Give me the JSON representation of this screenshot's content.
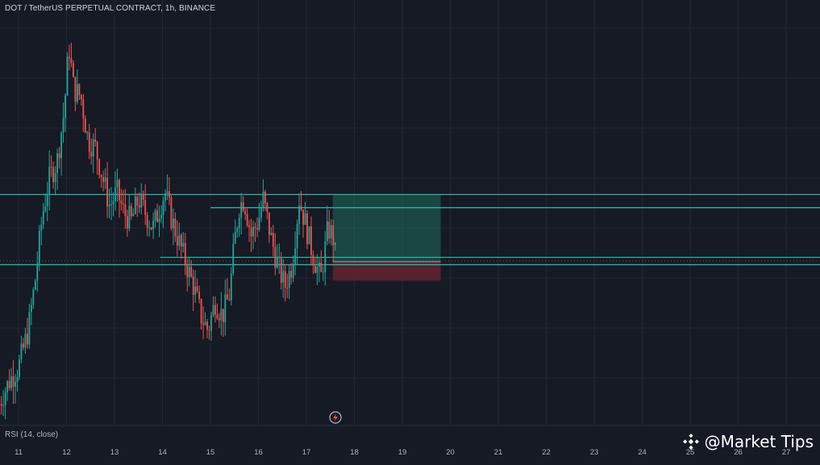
{
  "header": {
    "title": "DOT / TetherUS PERPETUAL CONTRACT, 1h, BINANCE"
  },
  "indicator": {
    "label": "RSI (14, close)"
  },
  "watermark": {
    "text": "@Market Tips",
    "logo_icon": "binance-logo-icon"
  },
  "colors": {
    "background": "#161a25",
    "grid": "#232733",
    "up": "#26a69a",
    "down": "#ef5350",
    "level_line": "#2bb3a3",
    "profit_zone": "#1f6b5c",
    "loss_zone": "#6b2530",
    "axis_text": "#b2b5be"
  },
  "chart_data": {
    "type": "candlestick",
    "title": "DOT / TetherUS PERPETUAL CONTRACT, 1h, BINANCE",
    "x_tick_labels": [
      "11",
      "12",
      "13",
      "14",
      "15",
      "16",
      "17",
      "18",
      "19",
      "20",
      "21",
      "22",
      "23",
      "24",
      "25",
      "26",
      "27"
    ],
    "price_axis_visible": false,
    "grid": true,
    "horizontal_levels": [
      {
        "name": "resistance-upper",
        "value": 0.73
      },
      {
        "name": "resistance-mid",
        "value": 0.64
      },
      {
        "name": "support-upper",
        "value": 0.3
      },
      {
        "name": "support-lower",
        "value": 0.25
      }
    ],
    "position_tool": {
      "direction": "long",
      "start_day": 17.55,
      "end_day": 19.8,
      "target": 0.73,
      "entry": 0.27,
      "stop": 0.14
    },
    "price_path": [
      [
        10.6,
        -0.7
      ],
      [
        10.8,
        -0.55
      ],
      [
        11.0,
        -0.45
      ],
      [
        11.2,
        -0.2
      ],
      [
        11.35,
        0.15
      ],
      [
        11.5,
        0.6
      ],
      [
        11.65,
        0.85
      ],
      [
        11.8,
        0.95
      ],
      [
        11.95,
        1.3
      ],
      [
        12.05,
        1.75
      ],
      [
        12.15,
        1.45
      ],
      [
        12.3,
        1.4
      ],
      [
        12.45,
        1.1
      ],
      [
        12.6,
        1.05
      ],
      [
        12.75,
        0.85
      ],
      [
        12.9,
        0.65
      ],
      [
        13.05,
        0.75
      ],
      [
        13.2,
        0.6
      ],
      [
        13.35,
        0.55
      ],
      [
        13.5,
        0.7
      ],
      [
        13.65,
        0.6
      ],
      [
        13.8,
        0.5
      ],
      [
        13.95,
        0.65
      ],
      [
        14.05,
        0.75
      ],
      [
        14.2,
        0.55
      ],
      [
        14.35,
        0.4
      ],
      [
        14.5,
        0.25
      ],
      [
        14.65,
        0.1
      ],
      [
        14.8,
        -0.1
      ],
      [
        14.95,
        -0.2
      ],
      [
        15.1,
        0.0
      ],
      [
        15.25,
        -0.1
      ],
      [
        15.4,
        0.05
      ],
      [
        15.5,
        0.4
      ],
      [
        15.6,
        0.65
      ],
      [
        15.7,
        0.7
      ],
      [
        15.85,
        0.45
      ],
      [
        16.0,
        0.55
      ],
      [
        16.1,
        0.7
      ],
      [
        16.25,
        0.45
      ],
      [
        16.4,
        0.25
      ],
      [
        16.55,
        0.1
      ],
      [
        16.7,
        0.25
      ],
      [
        16.85,
        0.7
      ],
      [
        17.0,
        0.5
      ],
      [
        17.15,
        0.3
      ],
      [
        17.3,
        0.15
      ],
      [
        17.45,
        0.5
      ],
      [
        17.55,
        0.45
      ],
      [
        17.62,
        0.27
      ]
    ]
  }
}
